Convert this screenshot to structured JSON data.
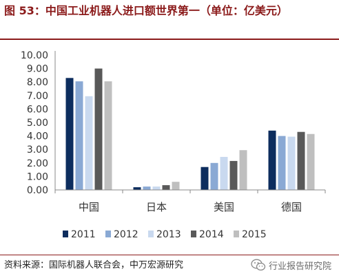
{
  "figure": {
    "title": "图 53：中国工业机器人进口额世界第一（单位：亿美元）",
    "source": "资料来源：国际机器人联合会，中万宏源研究",
    "watermark": "行业报告研究院",
    "watermark_icon": "wechat-icon"
  },
  "chart_data": {
    "type": "bar",
    "categories": [
      "中国",
      "日本",
      "美国",
      "德国"
    ],
    "series": [
      {
        "name": "2011",
        "color": "#0d2d5e",
        "values": [
          8.3,
          0.2,
          1.7,
          4.4
        ]
      },
      {
        "name": "2012",
        "color": "#8aa9d4",
        "values": [
          8.05,
          0.25,
          2.0,
          4.0
        ]
      },
      {
        "name": "2013",
        "color": "#c9d9ef",
        "values": [
          6.95,
          0.25,
          2.45,
          3.95
        ]
      },
      {
        "name": "2014",
        "color": "#595959",
        "values": [
          9.0,
          0.35,
          2.15,
          4.3
        ]
      },
      {
        "name": "2015",
        "color": "#bfbfbf",
        "values": [
          8.05,
          0.6,
          2.95,
          4.15
        ]
      }
    ],
    "yticks": [
      "0.00",
      "1.00",
      "2.00",
      "3.00",
      "4.00",
      "5.00",
      "6.00",
      "7.00",
      "8.00",
      "9.00",
      "10.00"
    ],
    "ylim": [
      0,
      10
    ],
    "grid": false,
    "legend": "bottom"
  }
}
